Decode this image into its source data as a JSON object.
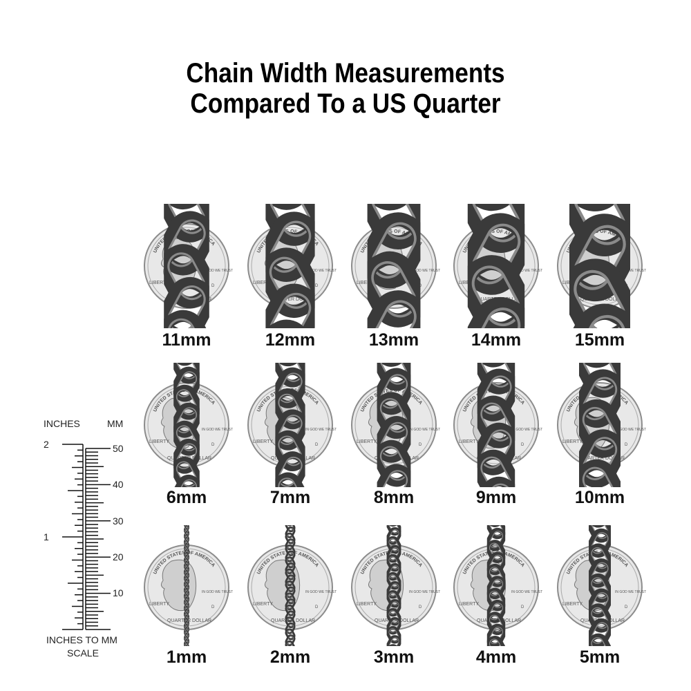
{
  "title": {
    "line1": "Chain Width Measurements",
    "line2": "Compared To a US Quarter"
  },
  "coin_lettering": [
    "UNITED STATES OF AMERICA",
    "LIBERTY",
    "IN GOD WE TRUST",
    "QUARTER DOLLAR",
    "D"
  ],
  "rows": [
    {
      "items": [
        {
          "mm": 11,
          "label": "11mm"
        },
        {
          "mm": 12,
          "label": "12mm"
        },
        {
          "mm": 13,
          "label": "13mm"
        },
        {
          "mm": 14,
          "label": "14mm"
        },
        {
          "mm": 15,
          "label": "15mm"
        }
      ]
    },
    {
      "items": [
        {
          "mm": 6,
          "label": "6mm"
        },
        {
          "mm": 7,
          "label": "7mm"
        },
        {
          "mm": 8,
          "label": "8mm"
        },
        {
          "mm": 9,
          "label": "9mm"
        },
        {
          "mm": 10,
          "label": "10mm"
        }
      ]
    },
    {
      "items": [
        {
          "mm": 1,
          "label": "1mm"
        },
        {
          "mm": 2,
          "label": "2mm"
        },
        {
          "mm": 3,
          "label": "3mm"
        },
        {
          "mm": 4,
          "label": "4mm"
        },
        {
          "mm": 5,
          "label": "5mm"
        }
      ]
    }
  ],
  "ruler": {
    "inches_header": "INCHES",
    "mm_header": "MM",
    "inch_labels": [
      "2",
      "1"
    ],
    "mm_labels": [
      "50",
      "40",
      "30",
      "20",
      "10"
    ],
    "caption_line1": "INCHES TO MM",
    "caption_line2": "SCALE"
  },
  "colors": {
    "chain": "#3a3a3a",
    "chain_highlight": "#8a8a8a",
    "coin": "#e8e8e8",
    "coin_edge": "#8c8c8c"
  }
}
